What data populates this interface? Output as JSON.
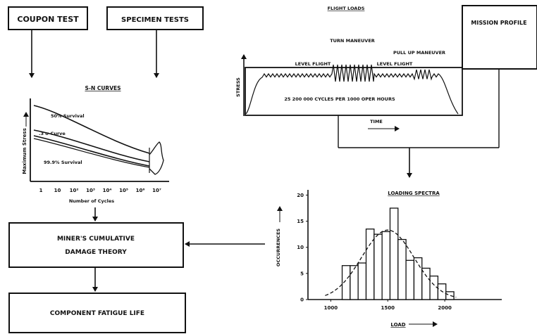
{
  "boxes": {
    "coupon_test": "COUPON TEST",
    "specimen_tests": "SPECIMEN TESTS",
    "mission_profile": "MISSION PROFILE",
    "miners_line1": "MINER'S CUMULATIVE",
    "miners_line2": "DAMAGE THEORY",
    "fatigue_life": "COMPONENT FATIGUE LIFE"
  },
  "sn_panel": {
    "title": "S-N CURVES",
    "ylabel": "Maximum Stress",
    "xlabel": "Number of Cycles",
    "xticks": [
      "1",
      "10",
      "10²",
      "10³",
      "10⁴",
      "10⁵",
      "10⁶",
      "10⁷"
    ],
    "curve_50": "50% Survival",
    "curve_3sigma": ".3 σ Curve",
    "curve_999": "99.9% Survival"
  },
  "flight_panel": {
    "title": "FLIGHT LOADS",
    "ylabel": "STRESS",
    "xlabel": "TIME",
    "turn": "TURN MANEUVER",
    "pullup": "PULL UP MANEUVER",
    "level_left": "LEVEL FLIGHT",
    "level_right": "LEVEL FLIGHT",
    "cycles": "25 200 000 CYCLES PER 1000 OPER HOURS"
  },
  "chart_data": {
    "type": "bar",
    "title": "LOADING SPECTRA",
    "xlabel": "LOAD",
    "ylabel": "OCCURRENCES",
    "xlim": [
      800,
      2500
    ],
    "ylim": [
      0,
      21
    ],
    "yticks": [
      "20",
      "15",
      "10",
      "5",
      "0"
    ],
    "xticks": [
      "1000",
      "1500",
      "2000"
    ],
    "bin_width": 70,
    "bins": [
      {
        "x": 1100,
        "value": 6.5
      },
      {
        "x": 1170,
        "value": 6.5
      },
      {
        "x": 1240,
        "value": 7.0
      },
      {
        "x": 1310,
        "value": 13.5
      },
      {
        "x": 1380,
        "value": 12.5
      },
      {
        "x": 1450,
        "value": 13.0
      },
      {
        "x": 1520,
        "value": 17.5
      },
      {
        "x": 1590,
        "value": 11.5
      },
      {
        "x": 1660,
        "value": 7.5
      },
      {
        "x": 1730,
        "value": 8.0
      },
      {
        "x": 1800,
        "value": 6.0
      },
      {
        "x": 1870,
        "value": 4.5
      },
      {
        "x": 1940,
        "value": 3.0
      },
      {
        "x": 2010,
        "value": 1.5
      }
    ],
    "fit_curve": {
      "type": "normal",
      "mean": 1500,
      "sd": 230,
      "peak": 13.3
    }
  }
}
